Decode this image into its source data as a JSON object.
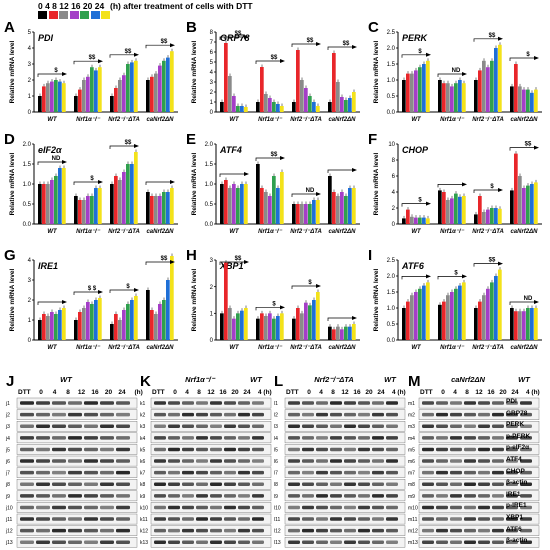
{
  "legend": {
    "time_points": [
      "0",
      "4",
      "8",
      "12",
      "16",
      "20",
      "24"
    ],
    "caption": "(h) after treatment of cells with DTT",
    "colors": [
      "#000000",
      "#e8262a",
      "#8a8a8a",
      "#a43ec7",
      "#2fa04e",
      "#1e6fd6",
      "#f3e21a"
    ]
  },
  "chart_data": [
    {
      "type": "bar",
      "letter": "A",
      "gene": "PDI",
      "ylabel": "Relative mRNA level",
      "ylim": [
        0,
        5
      ],
      "yticks": [
        0,
        1,
        2,
        3,
        4,
        5
      ],
      "categories": [
        "WT",
        "Nrf1α⁻/⁻",
        "Nrf2⁻/⁻ΔTA",
        "caNrf2ΔN"
      ],
      "values": [
        [
          1.0,
          1.6,
          1.8,
          1.9,
          2.0,
          1.9,
          1.8
        ],
        [
          1.0,
          1.4,
          2.0,
          2.2,
          2.8,
          2.6,
          2.8
        ],
        [
          1.0,
          1.5,
          2.0,
          2.3,
          3.0,
          3.1,
          3.2
        ],
        [
          2.0,
          2.2,
          2.4,
          2.9,
          3.2,
          3.4,
          3.8
        ]
      ],
      "annotations": [
        "$",
        "$$",
        "$$",
        "$$"
      ]
    },
    {
      "type": "bar",
      "letter": "B",
      "gene": "GRP78",
      "ylabel": "Relative mRNA level",
      "ylim": [
        0,
        8
      ],
      "yticks": [
        0,
        1,
        2,
        3,
        4,
        5,
        6,
        7,
        8
      ],
      "categories": [
        "WT",
        "Nrf1α⁻/⁻",
        "Nrf2⁻/⁻ΔTA",
        "caNrf2ΔN"
      ],
      "values": [
        [
          1.0,
          6.9,
          3.6,
          1.6,
          0.6,
          0.6,
          0.5
        ],
        [
          1.0,
          4.5,
          1.8,
          1.4,
          1.0,
          0.8,
          0.6
        ],
        [
          1.0,
          6.2,
          3.2,
          2.4,
          1.6,
          1.0,
          0.6
        ],
        [
          1.0,
          5.9,
          3.0,
          1.5,
          1.2,
          1.4,
          2.0
        ]
      ],
      "annotations": [
        "$$",
        "$$",
        "$$",
        "$$"
      ]
    },
    {
      "type": "bar",
      "letter": "C",
      "gene": "PERK",
      "ylabel": "Relative mRNA level",
      "ylim": [
        0,
        2.5
      ],
      "yticks": [
        0.0,
        0.5,
        1.0,
        1.5,
        2.0,
        2.5
      ],
      "categories": [
        "WT",
        "Nrf1α⁻/⁻",
        "Nrf2⁻/⁻ΔTA",
        "caNrf2ΔN"
      ],
      "values": [
        [
          1.0,
          1.2,
          1.2,
          1.3,
          1.4,
          1.5,
          1.6
        ],
        [
          1.0,
          0.9,
          0.9,
          0.8,
          0.9,
          1.0,
          0.9
        ],
        [
          1.0,
          1.3,
          1.6,
          1.4,
          1.6,
          2.0,
          2.1
        ],
        [
          0.8,
          1.5,
          0.8,
          0.7,
          0.7,
          0.6,
          0.7
        ]
      ],
      "annotations": [
        "$",
        "ND",
        "$$",
        "$"
      ]
    },
    {
      "type": "bar",
      "letter": "D",
      "gene": "eIF2α",
      "ylabel": "Relative mRNA level",
      "ylim": [
        0,
        2.0
      ],
      "yticks": [
        0.0,
        0.5,
        1.0,
        1.5,
        2.0
      ],
      "categories": [
        "WT",
        "Nrf1α⁻/⁻",
        "Nrf2⁻/⁻ΔTA",
        "caNrf2ΔN"
      ],
      "values": [
        [
          1.0,
          1.0,
          1.0,
          1.1,
          1.2,
          1.4,
          1.4
        ],
        [
          0.7,
          0.6,
          0.6,
          0.7,
          0.7,
          0.9,
          0.9
        ],
        [
          1.0,
          1.2,
          1.1,
          1.3,
          1.5,
          1.5,
          1.8
        ],
        [
          0.8,
          0.7,
          0.7,
          0.7,
          0.8,
          0.8,
          0.9
        ]
      ],
      "annotations": [
        "ND",
        "$",
        "$$",
        ""
      ]
    },
    {
      "type": "bar",
      "letter": "E",
      "gene": "ATF4",
      "ylabel": "Relative mRNA level",
      "ylim": [
        0,
        2.0
      ],
      "yticks": [
        0.0,
        0.5,
        1.0,
        1.5,
        2.0
      ],
      "categories": [
        "WT",
        "Nrf1α⁻/⁻",
        "Nrf2⁻/⁻ΔTA",
        "caNrf2ΔN"
      ],
      "values": [
        [
          1.0,
          1.1,
          0.9,
          1.0,
          0.9,
          1.0,
          1.0
        ],
        [
          1.5,
          0.9,
          0.8,
          0.7,
          1.2,
          0.9,
          1.3
        ],
        [
          0.5,
          0.5,
          0.5,
          0.5,
          0.5,
          0.6,
          0.6
        ],
        [
          1.2,
          0.8,
          0.7,
          0.8,
          0.7,
          0.9,
          0.9
        ]
      ],
      "annotations": [
        "",
        "$$",
        "ND",
        ""
      ]
    },
    {
      "type": "bar",
      "letter": "F",
      "gene": "CHOP",
      "ylabel": "Relative mRNA level",
      "ylim": [
        0,
        10
      ],
      "yticks": [
        0,
        2,
        4,
        6,
        8,
        10
      ],
      "categories": [
        "WT",
        "Nrf1α⁻/⁻",
        "Nrf2⁻/⁻ΔTA",
        "caNrf2ΔN"
      ],
      "values": [
        [
          0.7,
          1.8,
          0.9,
          0.8,
          0.8,
          0.8,
          0.7
        ],
        [
          4.2,
          4.0,
          3.0,
          3.2,
          3.8,
          3.4,
          3.5
        ],
        [
          1.2,
          3.5,
          1.5,
          1.8,
          2.0,
          2.0,
          1.9
        ],
        [
          4.2,
          8.8,
          6.0,
          4.5,
          4.8,
          5.0,
          5.2
        ]
      ],
      "annotations": [
        "$",
        "",
        "$",
        "$$"
      ]
    },
    {
      "type": "bar",
      "letter": "G",
      "gene": "IRE1",
      "ylabel": "Relative mRNA level",
      "ylim": [
        0,
        4
      ],
      "yticks": [
        0,
        1,
        2,
        3,
        4
      ],
      "categories": [
        "WT",
        "Nrf1α⁻/⁻",
        "Nrf2⁻/⁻ΔTA",
        "caNrf2ΔN"
      ],
      "values": [
        [
          1.0,
          1.3,
          1.2,
          1.4,
          1.3,
          1.5,
          1.6
        ],
        [
          1.0,
          1.4,
          1.6,
          1.9,
          1.8,
          2.0,
          2.1
        ],
        [
          0.8,
          1.3,
          1.0,
          1.5,
          1.8,
          2.0,
          2.2
        ],
        [
          2.5,
          1.5,
          1.3,
          1.8,
          2.0,
          3.0,
          4.2
        ]
      ],
      "annotations": [
        "",
        "$ $",
        "$",
        "$$"
      ]
    },
    {
      "type": "bar",
      "letter": "H",
      "gene": "XBP1",
      "ylabel": "Relative mRNA level",
      "ylim": [
        0,
        3
      ],
      "yticks": [
        0,
        1,
        2,
        3
      ],
      "categories": [
        "WT",
        "Nrf1α⁻/⁻",
        "Nrf2⁻/⁻ΔTA",
        "caNrf2ΔN"
      ],
      "values": [
        [
          1.0,
          2.9,
          1.2,
          0.8,
          1.0,
          1.1,
          1.2
        ],
        [
          0.8,
          1.0,
          0.9,
          1.0,
          0.8,
          0.9,
          1.0
        ],
        [
          0.8,
          1.2,
          1.0,
          1.4,
          1.3,
          1.5,
          1.8
        ],
        [
          0.5,
          0.4,
          0.5,
          0.4,
          0.5,
          0.5,
          0.6
        ]
      ],
      "annotations": [
        "$$",
        "$",
        "$",
        ""
      ]
    },
    {
      "type": "bar",
      "letter": "I",
      "gene": "ATF6",
      "ylabel": "Relative mRNA level",
      "ylim": [
        0,
        2.5
      ],
      "yticks": [
        0.0,
        0.5,
        1.0,
        1.5,
        2.0,
        2.5
      ],
      "categories": [
        "WT",
        "Nrf1α⁻/⁻",
        "Nrf2⁻/⁻ΔTA",
        "caNrf2ΔN"
      ],
      "values": [
        [
          1.0,
          1.2,
          1.4,
          1.5,
          1.6,
          1.7,
          1.8
        ],
        [
          1.1,
          1.2,
          1.4,
          1.5,
          1.6,
          1.7,
          1.8
        ],
        [
          1.0,
          1.2,
          1.4,
          1.6,
          1.8,
          2.0,
          2.2
        ],
        [
          1.0,
          0.9,
          0.9,
          0.9,
          1.0,
          1.0,
          1.0
        ]
      ],
      "annotations": [
        "",
        "$",
        "$$",
        "ND"
      ]
    }
  ],
  "blots": [
    {
      "letter": "J",
      "title": "WT",
      "dtt_label": "DTT",
      "lanes": [
        "0",
        "4",
        "8",
        "12",
        "16",
        "20",
        "24"
      ],
      "unit": "(h)",
      "rows": [
        "j1",
        "j2",
        "j3",
        "j4",
        "j5",
        "j6",
        "j7",
        "j8",
        "j9",
        "j10",
        "j11",
        "j12",
        "j13"
      ]
    },
    {
      "letter": "K",
      "title": "Nrf1α⁻/⁻",
      "ctrl_title": "WT",
      "dtt_label": "DTT",
      "lanes": [
        "0",
        "4",
        "8",
        "12",
        "16",
        "20",
        "24"
      ],
      "ctrl_lane": "4 (h)",
      "rows": [
        "k1",
        "k2",
        "k3",
        "k4",
        "k5",
        "k6",
        "k7",
        "k8",
        "k9",
        "k10",
        "k11",
        "k12",
        "k13"
      ]
    },
    {
      "letter": "L",
      "title": "Nrf2⁻/⁻ΔTA",
      "ctrl_title": "WT",
      "dtt_label": "DTT",
      "lanes": [
        "0",
        "4",
        "8",
        "12",
        "16",
        "20",
        "24"
      ],
      "ctrl_lane": "4 (h)",
      "rows": [
        "l1",
        "l2",
        "l3",
        "l4",
        "l5",
        "l6",
        "l7",
        "l8",
        "l9",
        "l10",
        "l11",
        "l12",
        "l13"
      ]
    },
    {
      "letter": "M",
      "title": "caNrf2ΔN",
      "ctrl_title": "WT",
      "dtt_label": "DTT",
      "lanes": [
        "0",
        "4",
        "8",
        "12",
        "16",
        "20",
        "24"
      ],
      "ctrl_lane": "4 (h)",
      "rows": [
        "m1",
        "m2",
        "m3",
        "m4",
        "m5",
        "m6",
        "m7",
        "m8",
        "m9",
        "m10",
        "m11",
        "m12",
        "m13"
      ]
    }
  ],
  "protein_labels": [
    "PDI",
    "GRP78",
    "PERK",
    "p-PERK",
    "p-eIF2α",
    "ATF4",
    "CHOP",
    "β-actin",
    "IRE1",
    "p-IRE1",
    "XBP1",
    "ATF6",
    "β-actin"
  ]
}
